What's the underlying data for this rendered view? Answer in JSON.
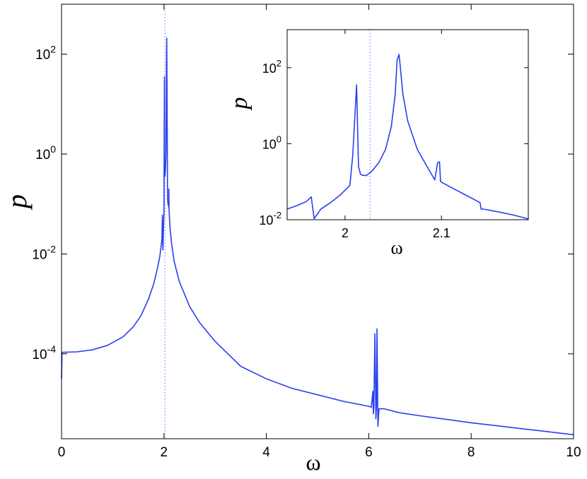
{
  "chart_data": [
    {
      "type": "line",
      "xlabel": "ω",
      "ylabel": "p",
      "yscale": "log",
      "xlim": [
        0,
        10
      ],
      "ylim_exp": [
        -5.7,
        3
      ],
      "xticks": [
        {
          "value": 0,
          "label": "0"
        },
        {
          "value": 2,
          "label": "2"
        },
        {
          "value": 4,
          "label": "4"
        },
        {
          "value": 6,
          "label": "6"
        },
        {
          "value": 8,
          "label": "8"
        },
        {
          "value": 10,
          "label": "10"
        }
      ],
      "yticks": [
        {
          "exp": 2,
          "base": "10",
          "power": "2"
        },
        {
          "exp": 0,
          "base": "10",
          "power": "0"
        },
        {
          "exp": -2,
          "base": "10",
          "power": "-2"
        },
        {
          "exp": -4,
          "base": "10",
          "power": "-4"
        }
      ],
      "ref_line_x": 2.02,
      "series": [
        {
          "color": "#2a3ff0",
          "x": [
            0,
            0.01,
            0.02,
            0.3,
            0.6,
            0.9,
            1.2,
            1.4,
            1.55,
            1.7,
            1.8,
            1.87,
            1.92,
            1.96,
            1.97,
            1.975,
            1.98,
            1.985,
            1.99,
            2.0,
            2.005,
            2.01,
            2.012,
            2.02,
            2.03,
            2.04,
            2.05,
            2.055,
            2.06,
            2.065,
            2.07,
            2.08,
            2.095,
            2.097,
            2.1,
            2.12,
            2.15,
            2.2,
            2.3,
            2.5,
            2.7,
            3.0,
            3.5,
            4.0,
            4.5,
            5.0,
            5.5,
            6.0,
            6.05,
            6.08,
            6.09,
            6.1,
            6.12,
            6.14,
            6.15,
            6.16,
            6.18,
            6.2,
            6.3,
            6.6,
            7.0,
            7.5,
            8.0,
            8.5,
            9.0,
            9.5,
            10.0
          ],
          "y_exp": [
            -4.5,
            -3.98,
            -3.97,
            -3.96,
            -3.92,
            -3.83,
            -3.66,
            -3.46,
            -3.24,
            -2.9,
            -2.6,
            -2.3,
            -2.05,
            -1.72,
            -1.22,
            -1.7,
            -1.92,
            -1.7,
            -1.5,
            -1.2,
            0.5,
            1.55,
            -0.2,
            -0.45,
            -0.3,
            0.0,
            1.8,
            2.32,
            1.5,
            0.3,
            -0.9,
            -1.0,
            -1.07,
            -0.7,
            -1.1,
            -1.5,
            -1.8,
            -2.15,
            -2.55,
            -3.05,
            -3.38,
            -3.75,
            -4.25,
            -4.5,
            -4.69,
            -4.82,
            -4.95,
            -5.05,
            -5.07,
            -4.75,
            -5.2,
            -5.08,
            -3.6,
            -5.3,
            -5.05,
            -3.5,
            -5.45,
            -5.1,
            -5.1,
            -5.18,
            -5.24,
            -5.31,
            -5.38,
            -5.44,
            -5.5,
            -5.56,
            -5.62
          ]
        }
      ]
    },
    {
      "type": "line",
      "xlabel": "ω",
      "ylabel": "p",
      "yscale": "log",
      "xlim": [
        1.94,
        2.19
      ],
      "ylim_exp": [
        -2,
        3
      ],
      "xticks": [
        {
          "value": 2.0,
          "label": "2"
        },
        {
          "value": 2.1,
          "label": "2.1"
        }
      ],
      "yticks": [
        {
          "exp": 2,
          "base": "10",
          "power": "2"
        },
        {
          "exp": 0,
          "base": "10",
          "power": "0"
        },
        {
          "exp": -2,
          "base": "10",
          "power": "-2"
        }
      ],
      "ref_line_x": 2.026,
      "series": [
        {
          "color": "#2a3ff0",
          "x": [
            1.94,
            1.95,
            1.96,
            1.965,
            1.968,
            1.97,
            1.975,
            1.985,
            1.995,
            2.005,
            2.008,
            2.012,
            2.014,
            2.016,
            2.018,
            2.022,
            2.028,
            2.035,
            2.042,
            2.048,
            2.052,
            2.054,
            2.056,
            2.057,
            2.06,
            2.065,
            2.075,
            2.085,
            2.093,
            2.096,
            2.098,
            2.099,
            2.11,
            2.125,
            2.14,
            2.141,
            2.143,
            2.16,
            2.175,
            2.19
          ],
          "y_exp": [
            -1.72,
            -1.63,
            -1.52,
            -1.4,
            -1.97,
            -1.9,
            -1.72,
            -1.55,
            -1.35,
            -1.1,
            -0.3,
            1.55,
            -0.6,
            -0.8,
            -0.83,
            -0.84,
            -0.72,
            -0.5,
            -0.15,
            0.45,
            1.3,
            2.2,
            2.35,
            2.1,
            1.3,
            0.6,
            -0.15,
            -0.6,
            -0.95,
            -0.5,
            -0.48,
            -1.0,
            -1.15,
            -1.35,
            -1.55,
            -1.72,
            -1.72,
            -1.8,
            -1.88,
            -1.98
          ]
        }
      ]
    }
  ]
}
